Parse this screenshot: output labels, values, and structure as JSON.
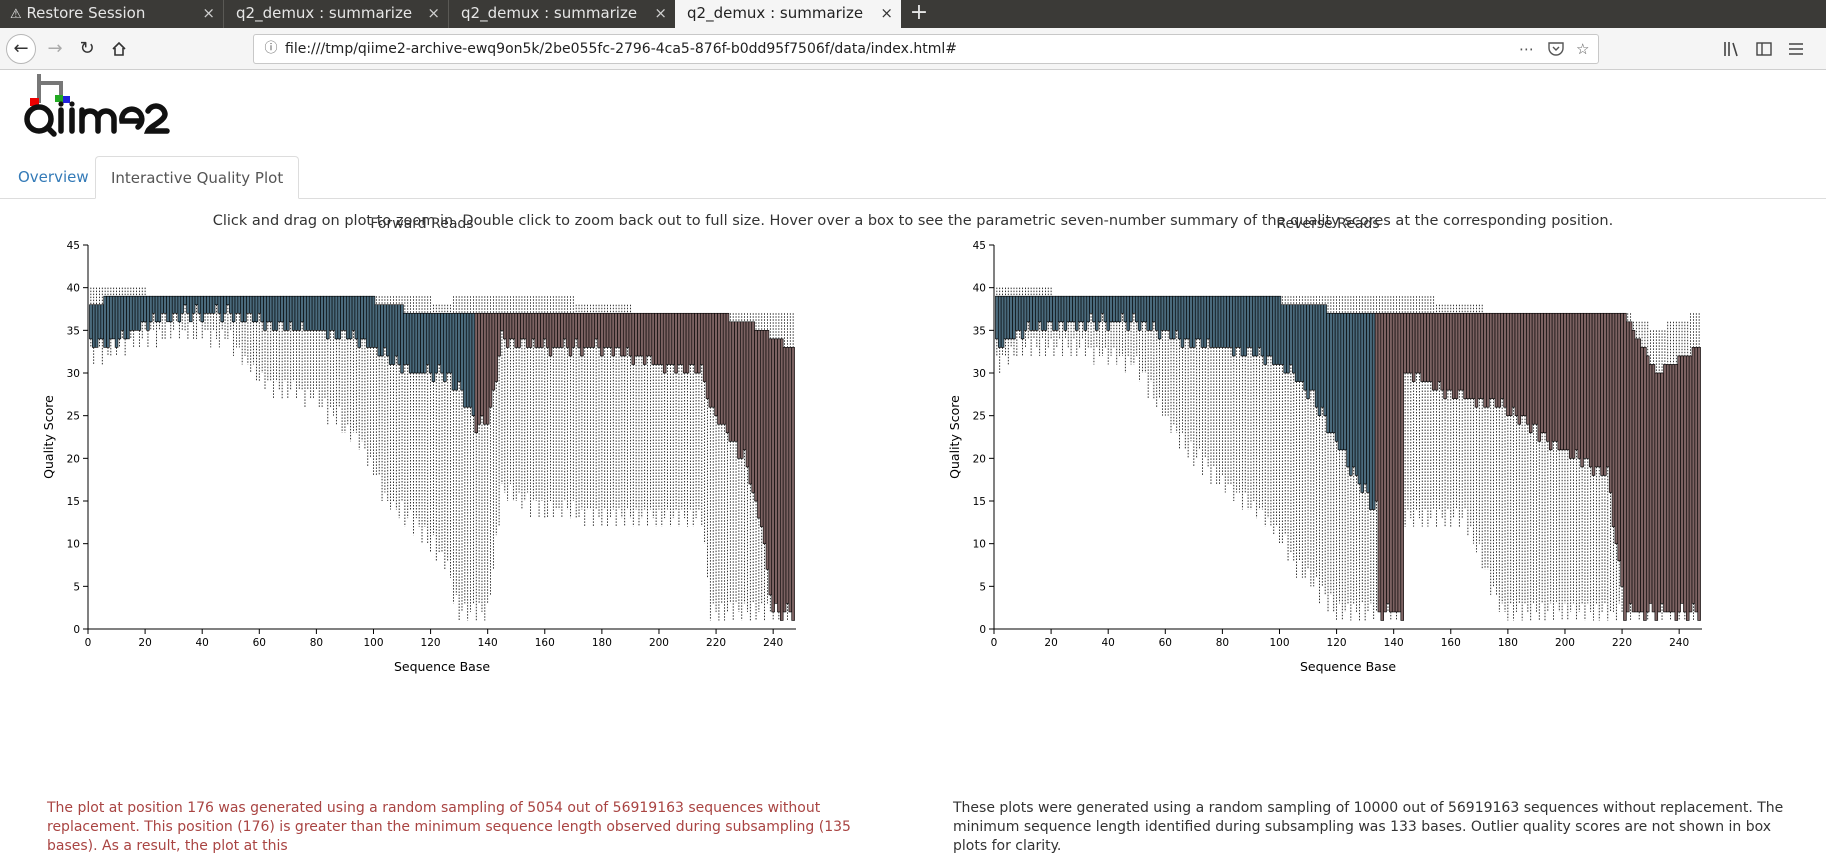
{
  "browser": {
    "tabs": [
      {
        "label": "Restore Session",
        "icon": "warning-icon",
        "active": false
      },
      {
        "label": "q2_demux : summarize",
        "active": false
      },
      {
        "label": "q2_demux : summarize",
        "active": false
      },
      {
        "label": "q2_demux : summarize",
        "active": true
      }
    ],
    "close_glyph": "×",
    "new_tab_glyph": "+",
    "url": "file:///tmp/qiime2-archive-ewq9on5k/2be055fc-2796-4ca5-876f-b0dd95f7506f/data/index.html#"
  },
  "page": {
    "tabs": [
      {
        "label": "Overview",
        "active": false
      },
      {
        "label": "Interactive Quality Plot",
        "active": true
      }
    ],
    "instruction": "Click and drag on plot to zoom in. Double click to zoom back out to full size. Hover over a box to see the parametric seven-number summary of the quality scores at the corresponding position.",
    "forward_note": "The plot at position 176 was generated using a random sampling of 5054 out of 56919163 sequences without replacement. This position (176) is greater than the minimum sequence length observed during subsampling (135 bases). As a result, the plot at this",
    "reverse_note": "These plots were generated using a random sampling of 10000 out of 56919163 sequences without replacement. The minimum sequence length identified during subsampling was 133 bases. Outlier quality scores are not shown in box plots for clarity.",
    "colors": {
      "box_good": "#4a6a7c",
      "box_low": "#7c6262",
      "error_text": "#a94442",
      "link": "#337ab7"
    }
  },
  "chart_data": [
    {
      "type": "box",
      "title": "Forward Reads",
      "xlabel": "Sequence Base",
      "ylabel": "Quality Score",
      "xlim": [
        0,
        248
      ],
      "ylim": [
        0,
        45
      ],
      "xticks": [
        0,
        20,
        40,
        60,
        80,
        100,
        120,
        140,
        160,
        180,
        200,
        220,
        240
      ],
      "yticks": [
        0,
        5,
        10,
        15,
        20,
        25,
        30,
        35,
        40,
        45
      ],
      "min_length_boundary": 135,
      "profile": [
        {
          "pos": 1,
          "q1": 33,
          "q3": 38,
          "wlo": 32,
          "whi": 40
        },
        {
          "pos": 10,
          "q1": 34,
          "q3": 39,
          "wlo": 33,
          "whi": 40
        },
        {
          "pos": 30,
          "q1": 37,
          "q3": 39,
          "wlo": 35,
          "whi": 39
        },
        {
          "pos": 50,
          "q1": 37,
          "q3": 39,
          "wlo": 34,
          "whi": 39
        },
        {
          "pos": 60,
          "q1": 36,
          "q3": 39,
          "wlo": 29,
          "whi": 39
        },
        {
          "pos": 80,
          "q1": 35,
          "q3": 39,
          "wlo": 27,
          "whi": 39
        },
        {
          "pos": 95,
          "q1": 34,
          "q3": 39,
          "wlo": 22,
          "whi": 39
        },
        {
          "pos": 105,
          "q1": 32,
          "q3": 38,
          "wlo": 15,
          "whi": 39
        },
        {
          "pos": 115,
          "q1": 30,
          "q3": 37,
          "wlo": 12,
          "whi": 39
        },
        {
          "pos": 125,
          "q1": 30,
          "q3": 37,
          "wlo": 8,
          "whi": 38
        },
        {
          "pos": 130,
          "q1": 28,
          "q3": 37,
          "wlo": 2,
          "whi": 39
        },
        {
          "pos": 136,
          "q1": 24,
          "q3": 37,
          "wlo": 2,
          "whi": 39
        },
        {
          "pos": 140,
          "q1": 24,
          "q3": 37,
          "wlo": 2,
          "whi": 39
        },
        {
          "pos": 145,
          "q1": 34,
          "q3": 37,
          "wlo": 16,
          "whi": 39
        },
        {
          "pos": 160,
          "q1": 33,
          "q3": 37,
          "wlo": 14,
          "whi": 39
        },
        {
          "pos": 180,
          "q1": 33,
          "q3": 37,
          "wlo": 13,
          "whi": 38
        },
        {
          "pos": 200,
          "q1": 31,
          "q3": 37,
          "wlo": 13,
          "whi": 37
        },
        {
          "pos": 215,
          "q1": 30,
          "q3": 37,
          "wlo": 13,
          "whi": 37
        },
        {
          "pos": 218,
          "q1": 26,
          "q3": 37,
          "wlo": 2,
          "whi": 37
        },
        {
          "pos": 230,
          "q1": 20,
          "q3": 36,
          "wlo": 2,
          "whi": 37
        },
        {
          "pos": 236,
          "q1": 12,
          "q3": 35,
          "wlo": 2,
          "whi": 37
        },
        {
          "pos": 240,
          "q1": 2,
          "q3": 34,
          "wlo": 2,
          "whi": 37
        },
        {
          "pos": 247,
          "q1": 2,
          "q3": 33,
          "wlo": 2,
          "whi": 37
        }
      ]
    },
    {
      "type": "box",
      "title": "Reverse Reads",
      "xlabel": "Sequence Base",
      "ylabel": "Quality Score",
      "xlim": [
        0,
        248
      ],
      "ylim": [
        0,
        45
      ],
      "xticks": [
        0,
        20,
        40,
        60,
        80,
        100,
        120,
        140,
        160,
        180,
        200,
        220,
        240
      ],
      "yticks": [
        0,
        5,
        10,
        15,
        20,
        25,
        30,
        35,
        40,
        45
      ],
      "min_length_boundary": 133,
      "profile": [
        {
          "pos": 1,
          "q1": 33,
          "q3": 39,
          "wlo": 31,
          "whi": 40
        },
        {
          "pos": 10,
          "q1": 35,
          "q3": 39,
          "wlo": 33,
          "whi": 40
        },
        {
          "pos": 30,
          "q1": 36,
          "q3": 39,
          "wlo": 33,
          "whi": 39
        },
        {
          "pos": 50,
          "q1": 36,
          "q3": 39,
          "wlo": 31,
          "whi": 39
        },
        {
          "pos": 65,
          "q1": 34,
          "q3": 39,
          "wlo": 22,
          "whi": 39
        },
        {
          "pos": 80,
          "q1": 33,
          "q3": 39,
          "wlo": 17,
          "whi": 39
        },
        {
          "pos": 95,
          "q1": 32,
          "q3": 39,
          "wlo": 13,
          "whi": 39
        },
        {
          "pos": 105,
          "q1": 30,
          "q3": 38,
          "wlo": 8,
          "whi": 39
        },
        {
          "pos": 112,
          "q1": 27,
          "q3": 38,
          "wlo": 5,
          "whi": 39
        },
        {
          "pos": 120,
          "q1": 22,
          "q3": 37,
          "wlo": 2,
          "whi": 39
        },
        {
          "pos": 128,
          "q1": 17,
          "q3": 37,
          "wlo": 2,
          "whi": 39
        },
        {
          "pos": 134,
          "q1": 14,
          "q3": 37,
          "wlo": 2,
          "whi": 39
        },
        {
          "pos": 135,
          "q1": 2,
          "q3": 37,
          "wlo": 2,
          "whi": 39
        },
        {
          "pos": 143,
          "q1": 2,
          "q3": 37,
          "wlo": 2,
          "whi": 39
        },
        {
          "pos": 144,
          "q1": 30,
          "q3": 37,
          "wlo": 13,
          "whi": 39
        },
        {
          "pos": 165,
          "q1": 27,
          "q3": 37,
          "wlo": 13,
          "whi": 38
        },
        {
          "pos": 178,
          "q1": 26,
          "q3": 37,
          "wlo": 2,
          "whi": 37
        },
        {
          "pos": 195,
          "q1": 22,
          "q3": 37,
          "wlo": 2,
          "whi": 37
        },
        {
          "pos": 215,
          "q1": 18,
          "q3": 37,
          "wlo": 2,
          "whi": 37
        },
        {
          "pos": 221,
          "q1": 2,
          "q3": 37,
          "wlo": 2,
          "whi": 37
        },
        {
          "pos": 232,
          "q1": 2,
          "q3": 30,
          "wlo": 2,
          "whi": 35
        },
        {
          "pos": 247,
          "q1": 2,
          "q3": 33,
          "wlo": 2,
          "whi": 37
        }
      ]
    }
  ]
}
